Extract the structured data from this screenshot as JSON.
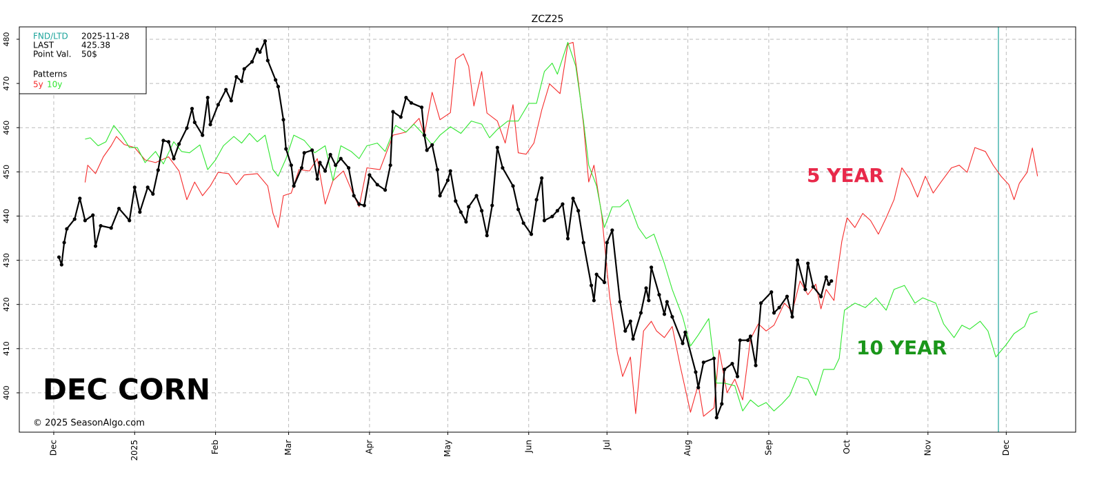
{
  "chart_data": {
    "type": "line",
    "title": "ZCZ25",
    "xlim": [
      -13.2,
      391.6
    ],
    "ylim": [
      391.1,
      482.8
    ],
    "xticks": [
      {
        "value": 0,
        "label": "Dec"
      },
      {
        "value": 31,
        "label": "2025"
      },
      {
        "value": 62,
        "label": "Feb"
      },
      {
        "value": 90,
        "label": "Mar"
      },
      {
        "value": 121,
        "label": "Apr"
      },
      {
        "value": 151,
        "label": "May"
      },
      {
        "value": 182,
        "label": "Jun"
      },
      {
        "value": 212,
        "label": "Jul"
      },
      {
        "value": 243,
        "label": "Aug"
      },
      {
        "value": 274,
        "label": "Sep"
      },
      {
        "value": 304,
        "label": "Oct"
      },
      {
        "value": 335,
        "label": "Nov"
      },
      {
        "value": 365,
        "label": "Dec"
      }
    ],
    "yticks": [
      400,
      410,
      420,
      430,
      440,
      450,
      460,
      470,
      480
    ],
    "grid": true,
    "vline_x": 362,
    "vline_color": "#1aa39a",
    "info": {
      "rows": [
        [
          "FND/LTD",
          "2025-11-28"
        ],
        [
          "LAST",
          "425.38"
        ],
        [
          "Point Val.",
          "50$"
        ]
      ],
      "patterns_label": "Patterns"
    },
    "annotations": [
      "5 YEAR",
      "10 YEAR",
      "DEC CORN",
      "© 2025 SeasonAlgo.com"
    ],
    "series": [
      {
        "name": "5y",
        "color": "#f52a2a",
        "markers": false,
        "x": [
          12,
          13,
          16,
          19,
          22,
          24,
          27,
          31,
          35,
          39,
          44,
          48,
          51,
          54,
          57,
          60,
          63,
          67,
          70,
          73,
          78,
          82,
          84,
          86,
          88,
          91,
          94,
          98,
          101,
          104,
          107,
          111,
          115,
          117,
          120,
          125,
          130,
          135,
          140,
          142,
          145,
          148,
          152,
          154,
          157,
          159,
          161,
          164,
          166,
          170,
          173,
          176,
          178,
          181,
          184,
          187,
          190,
          194,
          197,
          199,
          201,
          203,
          205,
          207,
          210,
          213,
          216,
          218,
          221,
          223,
          226,
          229,
          231,
          234,
          237,
          240,
          244,
          247,
          249,
          253,
          255,
          258,
          261,
          264,
          267,
          270,
          273,
          276,
          280,
          283,
          286,
          289,
          292,
          294,
          296,
          299,
          300,
          302,
          304,
          307,
          310,
          313,
          316,
          319,
          322,
          325,
          328,
          331,
          334,
          337,
          340,
          344,
          347,
          350,
          353,
          357,
          360,
          363,
          366,
          368,
          370,
          373,
          375,
          377
        ],
        "values": [
          447.6,
          451.5,
          449.6,
          453.4,
          455.9,
          458,
          456.2,
          455.5,
          452.7,
          452.1,
          453.4,
          450.2,
          443.7,
          447.7,
          444.6,
          446.8,
          449.9,
          449.6,
          447.1,
          449.3,
          449.6,
          446.8,
          440.6,
          437.4,
          444.6,
          445.2,
          450.5,
          450.2,
          453,
          442.7,
          448,
          450.2,
          444.6,
          442.1,
          450.9,
          450.5,
          458.3,
          459,
          462.1,
          458.3,
          468,
          461.8,
          463.4,
          475.5,
          476.7,
          473.9,
          464.9,
          472.7,
          463.3,
          461.5,
          456.5,
          465.2,
          454.3,
          454,
          456.5,
          464,
          469.9,
          467.7,
          478.9,
          479.3,
          470.5,
          460.8,
          447.7,
          451.5,
          440.2,
          421.8,
          409,
          403.7,
          408.1,
          395.3,
          414,
          416.2,
          414,
          412.5,
          415,
          406.2,
          395.6,
          401.9,
          394.7,
          396.6,
          409.7,
          400,
          403.1,
          398.4,
          412.2,
          415.6,
          414,
          415.3,
          420.3,
          418.4,
          425.3,
          422.2,
          424.6,
          419,
          423.4,
          420.9,
          425.9,
          434.3,
          439.6,
          437.4,
          440.6,
          439,
          435.9,
          439.6,
          443.7,
          450.9,
          448.4,
          444.3,
          449,
          445.2,
          447.7,
          450.9,
          451.5,
          449.9,
          455.5,
          454.6,
          451.5,
          449,
          447.1,
          443.7,
          447.4,
          449.9,
          455.4,
          449
        ]
      },
      {
        "name": "10y",
        "color": "#2ee62e",
        "markers": false,
        "x": [
          12,
          14,
          17,
          20,
          23,
          26,
          29,
          32,
          35,
          39,
          42,
          46,
          49,
          52,
          56,
          59,
          62,
          65,
          69,
          72,
          75,
          78,
          81,
          84,
          86,
          89,
          92,
          96,
          100,
          104,
          107,
          110,
          114,
          117,
          120,
          124,
          127,
          131,
          135,
          138,
          142,
          145,
          148,
          152,
          156,
          160,
          164,
          167,
          170,
          174,
          178,
          182,
          185,
          188,
          191,
          193,
          197,
          200,
          203,
          205,
          208,
          211,
          214,
          217,
          220,
          224,
          227,
          230,
          234,
          237,
          241,
          244,
          247,
          251,
          254,
          257,
          261,
          264,
          267,
          270,
          273,
          276,
          279,
          282,
          285,
          289,
          292,
          295,
          299,
          301,
          303,
          307,
          311,
          315,
          319,
          322,
          326,
          330,
          333,
          338,
          341,
          345,
          348,
          351,
          355,
          358,
          361,
          365,
          368,
          372,
          374,
          377
        ],
        "values": [
          457.4,
          457.7,
          455.9,
          456.8,
          460.5,
          458.3,
          455.5,
          455.5,
          452.1,
          454.6,
          451.8,
          456.8,
          454.6,
          454.3,
          456.1,
          450.5,
          452.7,
          455.9,
          458,
          456.5,
          458.7,
          456.8,
          458.3,
          450.5,
          449,
          453,
          458.3,
          457.1,
          454.3,
          455.9,
          448,
          455.9,
          454.6,
          453,
          455.9,
          456.5,
          454.6,
          460.5,
          459,
          460.8,
          458.3,
          456.1,
          458.3,
          460.2,
          458.7,
          461.5,
          460.8,
          457.7,
          459.6,
          461.5,
          461.5,
          465.5,
          465.5,
          472.7,
          474.6,
          472.1,
          479.3,
          474,
          461.5,
          451.5,
          446.8,
          437.4,
          442.1,
          442.1,
          443.7,
          437.4,
          434.9,
          435.9,
          429.3,
          423.4,
          417.2,
          410.6,
          413.1,
          416.8,
          402.2,
          402.2,
          401.6,
          395.9,
          398.4,
          396.9,
          397.8,
          395.9,
          397.5,
          399.4,
          403.7,
          403.1,
          399.4,
          405.3,
          405.3,
          407.8,
          418.7,
          420.3,
          419.3,
          421.5,
          418.7,
          423.4,
          424.3,
          420.3,
          421.5,
          420.3,
          415.6,
          412.5,
          415.3,
          414.4,
          416.2,
          414,
          408.1,
          410.9,
          413.4,
          415,
          417.8,
          418.4
        ]
      },
      {
        "color": "#000000",
        "markers": true,
        "x": [
          2,
          3,
          4,
          5,
          8,
          10,
          12,
          15,
          16,
          18,
          22,
          25,
          29,
          31,
          33,
          36,
          38,
          40,
          42,
          44,
          46,
          48,
          51,
          53,
          54,
          57,
          59,
          60,
          63,
          66,
          68,
          70,
          72,
          73,
          76,
          78,
          79,
          81,
          82,
          85,
          86,
          88,
          89,
          91,
          92,
          95,
          96,
          99,
          101,
          102,
          104,
          106,
          108,
          110,
          113,
          115,
          117,
          119,
          121,
          124,
          127,
          129,
          130,
          133,
          135,
          137,
          141,
          142,
          143,
          145,
          147,
          148,
          151,
          152,
          154,
          156,
          158,
          159,
          162,
          164,
          166,
          168,
          170,
          172,
          176,
          178,
          180,
          183,
          185,
          187,
          188,
          191,
          193,
          195,
          197,
          199,
          201,
          203,
          206,
          207,
          208,
          211,
          212,
          214,
          217,
          219,
          221,
          222,
          225,
          227,
          228,
          229,
          232,
          234,
          235,
          237,
          241,
          242,
          246,
          247,
          249,
          253,
          254,
          256,
          257,
          260,
          262,
          263,
          266,
          267,
          269,
          271,
          275,
          276,
          278,
          281,
          283,
          285,
          288,
          289,
          291,
          294,
          296,
          297,
          298
        ],
        "values": [
          430.7,
          429,
          434,
          437.1,
          439.3,
          444,
          439,
          440.2,
          433.2,
          437.8,
          437.3,
          441.7,
          439,
          446.5,
          440.9,
          446.5,
          445,
          450.4,
          457.1,
          456.8,
          453,
          456.3,
          459.9,
          464.3,
          461.2,
          458.3,
          466.8,
          460.7,
          465.2,
          468.6,
          466.1,
          471.5,
          470.5,
          473.3,
          474.9,
          477.7,
          477.1,
          479.6,
          475.2,
          470.8,
          469.3,
          461.8,
          455.2,
          451.5,
          446.8,
          450.9,
          454.3,
          454.9,
          448.4,
          452.1,
          450.2,
          453.9,
          451.5,
          453,
          450.9,
          444.6,
          442.7,
          442.4,
          449.3,
          447.1,
          445.9,
          451.5,
          463.6,
          462.4,
          466.8,
          465.6,
          464.6,
          458.3,
          454.9,
          456.1,
          450.5,
          444.6,
          448.1,
          450.2,
          443.4,
          440.9,
          438.7,
          442.1,
          444.6,
          441.2,
          435.6,
          442.4,
          455.5,
          450.9,
          446.8,
          441.5,
          438.4,
          435.9,
          443.7,
          448.6,
          439,
          439.9,
          441.2,
          442.7,
          434.9,
          444,
          441.2,
          434,
          424.3,
          420.9,
          426.8,
          425,
          434,
          436.8,
          420.6,
          414,
          416.2,
          412.2,
          418.1,
          423.7,
          420.9,
          428.4,
          422.2,
          417.8,
          420.6,
          417.2,
          411.2,
          413.7,
          404.7,
          401.2,
          406.9,
          407.8,
          394.4,
          397.5,
          405.3,
          406.6,
          403.7,
          411.9,
          411.9,
          412.8,
          406.2,
          420.3,
          422.8,
          418.1,
          419.3,
          421.8,
          417.2,
          430,
          423.4,
          429.3,
          424,
          421.8,
          426.2,
          424.6,
          425.3
        ]
      }
    ]
  }
}
